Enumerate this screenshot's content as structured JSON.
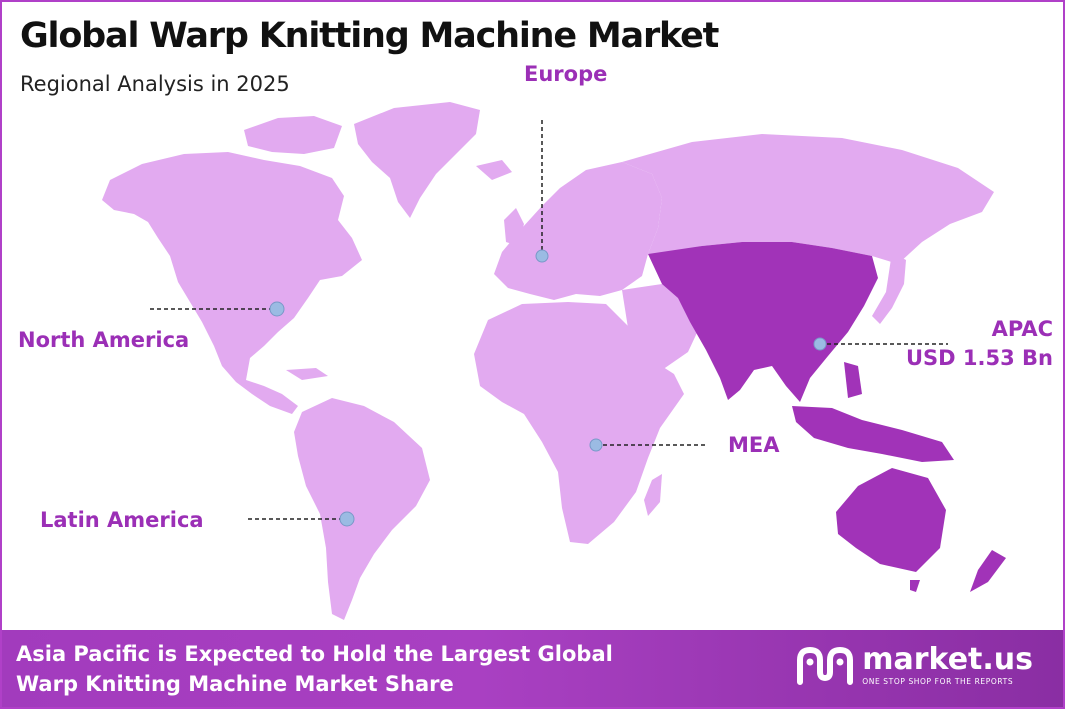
{
  "header": {
    "title": "Global Warp Knitting Machine Market",
    "subtitle": "Regional Analysis in 2025"
  },
  "regions": {
    "europe": "Europe",
    "north_america": "North America",
    "latin_america": "Latin America",
    "mea": "MEA",
    "apac": "APAC",
    "apac_value": "USD 1.53 Bn"
  },
  "footer": {
    "line1": "Asia Pacific is Expected to Hold the Largest Global",
    "line2": "Warp Knitting Machine Market Share"
  },
  "brand": {
    "name": "market.us",
    "tagline": "ONE STOP SHOP FOR THE REPORTS"
  },
  "colors": {
    "land_light": "#e2aaf0",
    "land_highlight": "#a133b8",
    "label": "#9b2fb6",
    "marker": "#9bbbe3",
    "footer_bg": "#a23bbd"
  },
  "highlighted_region": "APAC"
}
